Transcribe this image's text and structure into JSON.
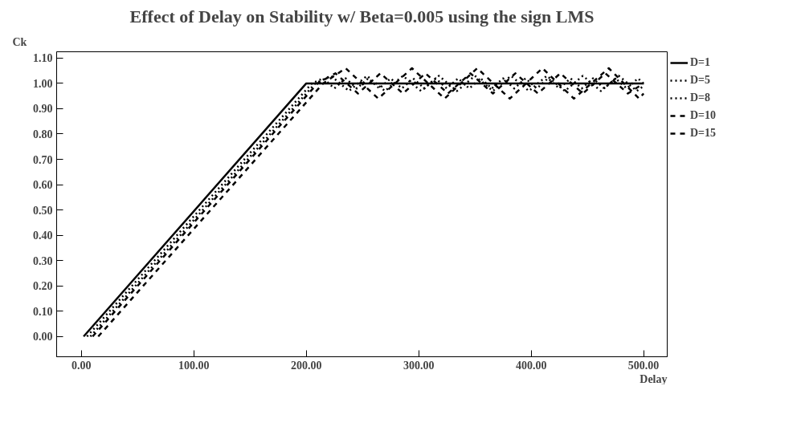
{
  "chart_data": {
    "type": "line",
    "title": "Effect of Delay on Stability w/ Beta=0.005 using the sign LMS",
    "xlabel": "Delay",
    "ylabel": "Ck",
    "xlim": [
      -22,
      521
    ],
    "ylim": [
      -0.08,
      1.125
    ],
    "xticks": [
      {
        "value": 0,
        "label": "0.00"
      },
      {
        "value": 100,
        "label": "100.00"
      },
      {
        "value": 200,
        "label": "200.00"
      },
      {
        "value": 300,
        "label": "300.00"
      },
      {
        "value": 400,
        "label": "400.00"
      },
      {
        "value": 500,
        "label": "500.00"
      }
    ],
    "yticks": [
      {
        "value": 0,
        "label": "0.00"
      },
      {
        "value": 0.1,
        "label": "0.10"
      },
      {
        "value": 0.2,
        "label": "0.20"
      },
      {
        "value": 0.3,
        "label": "0.30"
      },
      {
        "value": 0.4,
        "label": "0.40"
      },
      {
        "value": 0.5,
        "label": "0.50"
      },
      {
        "value": 0.6,
        "label": "0.60"
      },
      {
        "value": 0.7,
        "label": "0.70"
      },
      {
        "value": 0.8,
        "label": "0.80"
      },
      {
        "value": 0.9,
        "label": "0.90"
      },
      {
        "value": 1.0,
        "label": "1.00"
      },
      {
        "value": 1.1,
        "label": "1.10"
      }
    ],
    "grid": false,
    "legend": "right",
    "marker": "none",
    "series": [
      {
        "name": "D=1",
        "color": "#000000",
        "line_style": "solid",
        "x": [
          2,
          200,
          500
        ],
        "values": [
          0,
          1.0,
          1.0
        ]
      },
      {
        "name": "D=5",
        "color": "#000000",
        "line_style": "dotted",
        "x": [
          5,
          205,
          215,
          225,
          235,
          245,
          255,
          265,
          275,
          285,
          295,
          305,
          315,
          325,
          335,
          345,
          355,
          365,
          375,
          385,
          395,
          405,
          415,
          425,
          435,
          445,
          455,
          465,
          475,
          485,
          495,
          500
        ],
        "values": [
          0,
          1.0,
          1.02,
          0.98,
          1.02,
          0.98,
          1.02,
          0.98,
          1.02,
          0.98,
          1.02,
          0.98,
          1.02,
          0.98,
          1.02,
          0.98,
          1.02,
          0.98,
          1.02,
          0.98,
          1.02,
          0.98,
          1.02,
          0.98,
          1.02,
          0.98,
          1.02,
          0.98,
          1.02,
          0.98,
          1.02,
          1.0
        ]
      },
      {
        "name": "D=8",
        "color": "#000000",
        "line_style": "dotted",
        "x": [
          8,
          208,
          222,
          238,
          254,
          270,
          286,
          302,
          318,
          334,
          350,
          366,
          382,
          398,
          414,
          430,
          446,
          462,
          478,
          494,
          500
        ],
        "values": [
          0,
          1.0,
          1.03,
          0.97,
          1.03,
          0.97,
          1.03,
          0.97,
          1.03,
          0.97,
          1.03,
          0.97,
          1.03,
          0.97,
          1.03,
          0.97,
          1.03,
          0.97,
          1.03,
          0.97,
          0.99
        ]
      },
      {
        "name": "D=10",
        "color": "#000000",
        "line_style": "dashed",
        "x": [
          10,
          210,
          226,
          246,
          266,
          286,
          306,
          326,
          346,
          366,
          386,
          406,
          426,
          446,
          466,
          486,
          500
        ],
        "values": [
          0,
          1.0,
          1.04,
          0.96,
          1.04,
          0.96,
          1.04,
          0.96,
          1.04,
          0.96,
          1.04,
          0.96,
          1.04,
          0.96,
          1.04,
          0.96,
          1.0
        ]
      },
      {
        "name": "D=15",
        "color": "#000000",
        "line_style": "dashed",
        "x": [
          15,
          215,
          235,
          264,
          294,
          323,
          352,
          381,
          410,
          438,
          469,
          496,
          500
        ],
        "values": [
          0,
          1.0,
          1.06,
          0.94,
          1.06,
          0.94,
          1.06,
          0.94,
          1.06,
          0.94,
          1.06,
          0.94,
          0.96
        ]
      }
    ]
  }
}
